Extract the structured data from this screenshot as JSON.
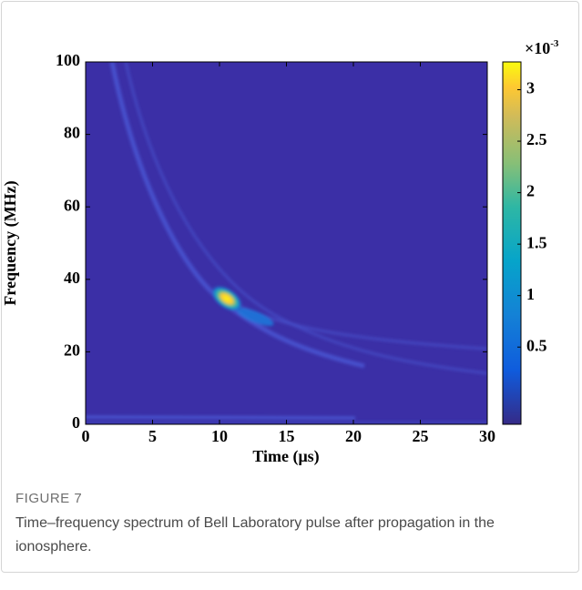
{
  "chart_data": {
    "type": "spectrogram",
    "xlabel": "Time (μs)",
    "ylabel": "Frequency (MHz)",
    "xlim": [
      0,
      30
    ],
    "xticks": [
      0,
      5,
      10,
      15,
      20,
      25,
      30
    ],
    "ylim": [
      0,
      100
    ],
    "yticks": [
      0,
      20,
      40,
      60,
      80,
      100
    ],
    "colormap": "parula",
    "clim": [
      -0.25,
      3.27
    ],
    "cticks": [
      0.5,
      1,
      1.5,
      2,
      2.5,
      3
    ],
    "colorbar_multiplier": {
      "base": "×10",
      "exponent": "-3"
    }
  },
  "figure": {
    "label": "FIGURE 7",
    "caption": "Time–frequency spectrum of Bell Laboratory pulse after propagation in the ionosphere."
  }
}
